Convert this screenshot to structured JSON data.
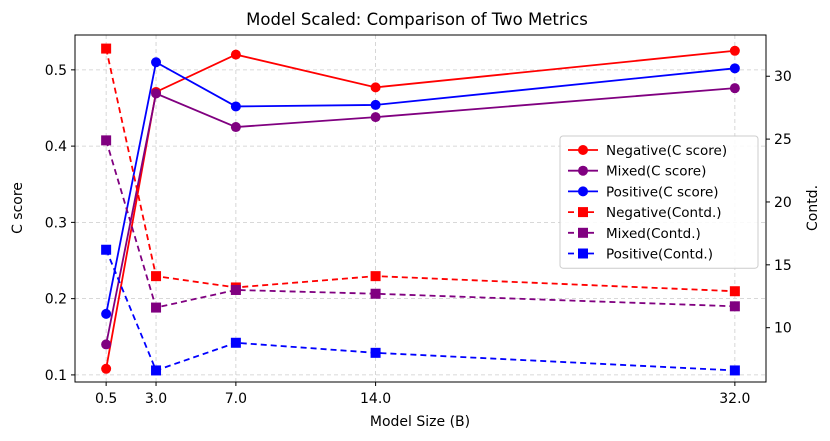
{
  "chart_data": {
    "type": "line",
    "title": "Model Scaled: Comparison of Two Metrics",
    "xlabel": "Model Size (B)",
    "ylabel": "C score",
    "y2label": "Contd.",
    "x": [
      0.5,
      3.0,
      7.0,
      14.0,
      32.0
    ],
    "x_tick_labels": [
      "0.5",
      "3.0",
      "7.0",
      "14.0",
      "32.0"
    ],
    "xlim": [
      -1.06,
      33.56
    ],
    "ylim": [
      0.0907,
      0.5457
    ],
    "y_ticks": [
      0.1,
      0.2,
      0.3,
      0.4,
      0.5
    ],
    "y_tick_labels": [
      "0.1",
      "0.2",
      "0.3",
      "0.4",
      "0.5"
    ],
    "y2lim": [
      5.68,
      33.28
    ],
    "y2_ticks": [
      10,
      15,
      20,
      25,
      30
    ],
    "y2_tick_labels": [
      "10",
      "15",
      "20",
      "25",
      "30"
    ],
    "grid": true,
    "legend_position": "center-right",
    "series": [
      {
        "name": "Negative(C score)",
        "axis": "left",
        "color": "#ff0000",
        "style": "solid",
        "marker": "circle",
        "values": [
          0.108,
          0.471,
          0.52,
          0.477,
          0.525
        ]
      },
      {
        "name": "Mixed(C score)",
        "axis": "left",
        "color": "#800080",
        "style": "solid",
        "marker": "circle",
        "values": [
          0.14,
          0.469,
          0.425,
          0.438,
          0.476
        ]
      },
      {
        "name": "Positive(C score)",
        "axis": "left",
        "color": "#0000ff",
        "style": "solid",
        "marker": "circle",
        "values": [
          0.18,
          0.51,
          0.452,
          0.454,
          0.502
        ]
      },
      {
        "name": "Negative(Contd.)",
        "axis": "right",
        "color": "#ff0000",
        "style": "dashed",
        "marker": "square",
        "values": [
          32.2,
          14.1,
          13.2,
          14.1,
          12.9
        ]
      },
      {
        "name": "Mixed(Contd.)",
        "axis": "right",
        "color": "#800080",
        "style": "dashed",
        "marker": "square",
        "values": [
          24.9,
          11.6,
          13.0,
          12.7,
          11.7
        ]
      },
      {
        "name": "Positive(Contd.)",
        "axis": "right",
        "color": "#0000ff",
        "style": "dashed",
        "marker": "square",
        "values": [
          16.2,
          6.6,
          8.8,
          8.0,
          6.6
        ]
      }
    ]
  }
}
